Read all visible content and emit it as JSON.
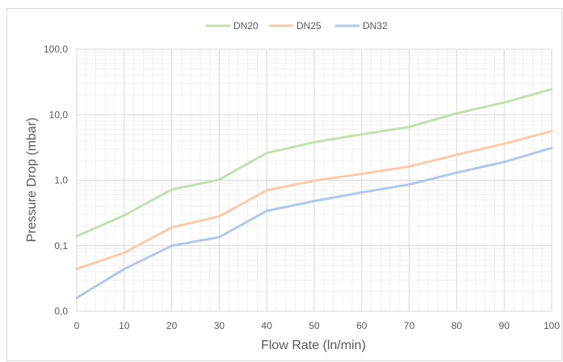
{
  "chart_data": {
    "type": "line",
    "title": "",
    "xlabel": "Flow Rate (ln/min)",
    "ylabel": "Pressure Drop (mbar)",
    "x": [
      0,
      10,
      20,
      30,
      40,
      50,
      60,
      70,
      80,
      90,
      100
    ],
    "x_ticks": [
      "0",
      "10",
      "20",
      "30",
      "40",
      "50",
      "60",
      "70",
      "80",
      "90",
      "100"
    ],
    "xlim": [
      0,
      100
    ],
    "y_scale": "log",
    "ylim": [
      0.01,
      100
    ],
    "y_ticks": [
      {
        "value": 0.01,
        "label": "0,0"
      },
      {
        "value": 0.1,
        "label": "0,1"
      },
      {
        "value": 1,
        "label": "1,0"
      },
      {
        "value": 10,
        "label": "10,0"
      },
      {
        "value": 100,
        "label": "100,0"
      }
    ],
    "grid": true,
    "legend_position": "top",
    "series": [
      {
        "name": "DN20",
        "color": "#c5dfb4",
        "values": [
          0.14,
          0.29,
          0.72,
          1.02,
          2.6,
          3.8,
          5.0,
          6.5,
          10.5,
          15.3,
          24.5
        ]
      },
      {
        "name": "DN25",
        "color": "#f8cbad",
        "values": [
          0.044,
          0.078,
          0.19,
          0.28,
          0.7,
          0.98,
          1.25,
          1.62,
          2.45,
          3.6,
          5.6
        ]
      },
      {
        "name": "DN32",
        "color": "#b4c7e7",
        "values": [
          0.016,
          0.044,
          0.1,
          0.135,
          0.34,
          0.48,
          0.65,
          0.86,
          1.3,
          1.9,
          3.1
        ]
      }
    ]
  }
}
